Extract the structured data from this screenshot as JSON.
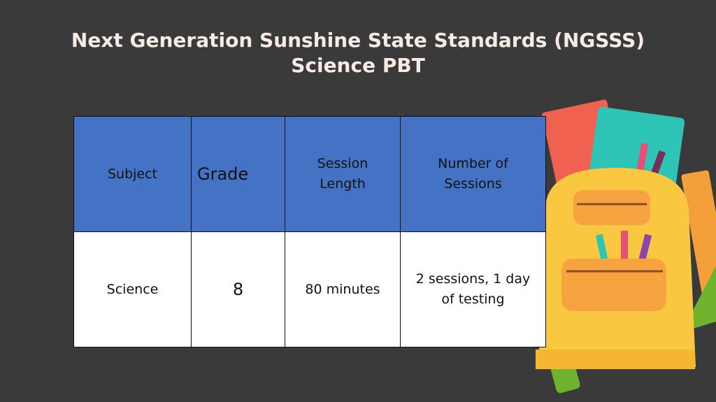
{
  "title": [
    "Next Generation Sunshine State Standards (NGSSS)",
    "Science PBT"
  ],
  "table": {
    "header": [
      "Subject",
      "Grade",
      "Session Length",
      "Number of Sessions"
    ],
    "rows": [
      [
        "Science",
        8,
        "80 minutes",
        "2 sessions, 1 day of testing"
      ]
    ]
  }
}
